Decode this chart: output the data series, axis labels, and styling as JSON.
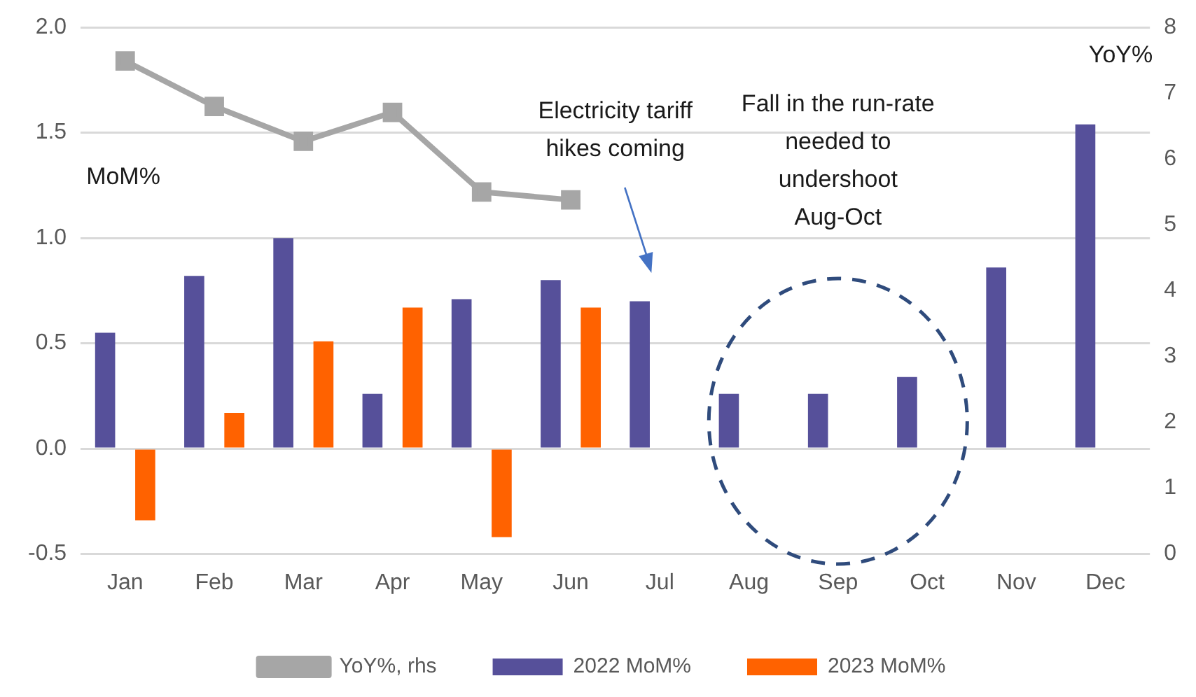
{
  "chart_data": {
    "type": "bar",
    "categories": [
      "Jan",
      "Feb",
      "Mar",
      "Apr",
      "May",
      "Jun",
      "Jul",
      "Aug",
      "Sep",
      "Oct",
      "Nov",
      "Dec"
    ],
    "series": [
      {
        "name": "2022 MoM%",
        "color": "#56509a",
        "values": [
          0.55,
          0.82,
          1.0,
          0.26,
          0.71,
          0.8,
          0.7,
          0.26,
          0.26,
          0.34,
          0.86,
          1.54
        ]
      },
      {
        "name": "2023 MoM%",
        "color": "#ff6200",
        "values": [
          -0.34,
          0.17,
          0.51,
          0.67,
          -0.42,
          0.67,
          null,
          null,
          null,
          null,
          null,
          null
        ]
      },
      {
        "name": "YoY%, rhs",
        "color": "#a6a6a6",
        "type": "line",
        "axis": "y2",
        "marker": "square",
        "values": [
          7.49,
          6.8,
          6.27,
          6.71,
          5.5,
          5.38,
          null,
          null,
          null,
          null,
          null,
          null
        ]
      }
    ],
    "ylabel": "MoM%",
    "y2label": "YoY%",
    "ylim": [
      -0.5,
      2.0
    ],
    "yticks": [
      {
        "value": -0.5,
        "label": "-0.5"
      },
      {
        "value": 0,
        "label": "0.0"
      },
      {
        "value": 0.5,
        "label": "0.5"
      },
      {
        "value": 1,
        "label": "1.0"
      },
      {
        "value": 1.5,
        "label": "1.5"
      },
      {
        "value": 2,
        "label": "2.0"
      }
    ],
    "y2lim": [
      0,
      8
    ],
    "y2ticks": [
      0,
      1,
      2,
      3,
      4,
      5,
      6,
      7,
      8
    ],
    "annotations": [
      "Electricity tariff\nhikes coming",
      "Fall in the run-rate\nneeded to\nundershoot\nAug-Oct"
    ],
    "grid": "y",
    "legend": "bottom"
  }
}
